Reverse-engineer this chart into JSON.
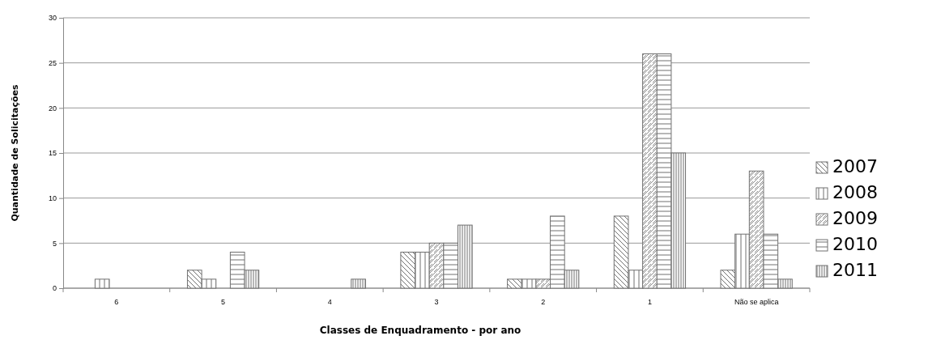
{
  "chart_data": {
    "type": "bar",
    "xlabel": "Classes de Enquadramento - por ano",
    "ylabel": "Quantidade de Solicitações",
    "categories": [
      "6",
      "5",
      "4",
      "3",
      "2",
      "1",
      "Não se aplica"
    ],
    "series": [
      {
        "name": "2007",
        "color": "#707070",
        "values": [
          0,
          2,
          0,
          4,
          1,
          8,
          2
        ]
      },
      {
        "name": "2008",
        "color": "#707070",
        "values": [
          1,
          1,
          0,
          4,
          1,
          2,
          6
        ]
      },
      {
        "name": "2009",
        "color": "#707070",
        "values": [
          0,
          0,
          0,
          5,
          1,
          26,
          13
        ]
      },
      {
        "name": "2010",
        "color": "#707070",
        "values": [
          0,
          4,
          0,
          5,
          8,
          26,
          6
        ]
      },
      {
        "name": "2011",
        "color": "#707070",
        "values": [
          0,
          2,
          1,
          7,
          2,
          15,
          1
        ]
      }
    ],
    "ylim": [
      0,
      30
    ],
    "yticks": [
      0,
      5,
      10,
      15,
      20,
      25,
      30
    ],
    "grid": "y",
    "legend": "right"
  }
}
